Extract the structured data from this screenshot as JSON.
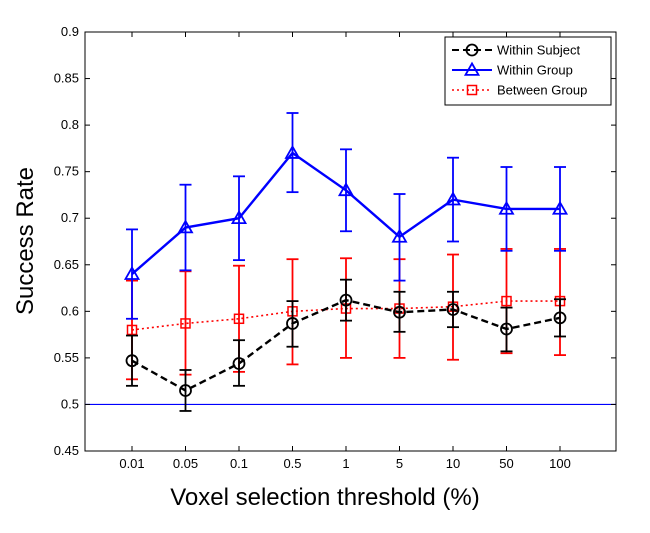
{
  "chart_data": {
    "type": "line",
    "xlabel": "Voxel selection threshold (%)",
    "ylabel": "Success Rate",
    "categories": [
      "0.01",
      "0.05",
      "0.1",
      "0.5",
      "1",
      "5",
      "10",
      "50",
      "100"
    ],
    "ylim": [
      0.45,
      0.9
    ],
    "yticks": [
      "0.45",
      "0.5",
      "0.55",
      "0.6",
      "0.65",
      "0.7",
      "0.75",
      "0.8",
      "0.85",
      "0.9"
    ],
    "grid": false,
    "legend_position": "top-right",
    "reference_line": {
      "y": 0.5,
      "color": "#0000ff"
    },
    "series": [
      {
        "name": "Within Subject",
        "color": "#000000",
        "line_style": "dashed",
        "marker": "circle",
        "values": [
          0.547,
          0.515,
          0.544,
          0.587,
          0.612,
          0.599,
          0.602,
          0.581,
          0.593
        ],
        "err_low": [
          0.52,
          0.493,
          0.52,
          0.562,
          0.59,
          0.578,
          0.583,
          0.557,
          0.573
        ],
        "err_high": [
          0.574,
          0.537,
          0.569,
          0.611,
          0.634,
          0.621,
          0.621,
          0.604,
          0.613
        ]
      },
      {
        "name": "Within Group",
        "color": "#0000ff",
        "line_style": "solid",
        "marker": "triangle",
        "values": [
          0.64,
          0.69,
          0.7,
          0.77,
          0.73,
          0.68,
          0.72,
          0.71,
          0.71
        ],
        "err_low": [
          0.592,
          0.644,
          0.655,
          0.728,
          0.686,
          0.633,
          0.675,
          0.665,
          0.665
        ],
        "err_high": [
          0.688,
          0.736,
          0.745,
          0.813,
          0.774,
          0.726,
          0.765,
          0.755,
          0.755
        ]
      },
      {
        "name": "Between Group",
        "color": "#ff0000",
        "line_style": "dotted",
        "marker": "square",
        "values": [
          0.58,
          0.587,
          0.592,
          0.6,
          0.603,
          0.603,
          0.605,
          0.611,
          0.611
        ],
        "err_low": [
          0.527,
          0.532,
          0.535,
          0.543,
          0.55,
          0.55,
          0.548,
          0.555,
          0.553
        ],
        "err_high": [
          0.633,
          0.643,
          0.649,
          0.656,
          0.657,
          0.656,
          0.661,
          0.667,
          0.667
        ]
      }
    ]
  }
}
